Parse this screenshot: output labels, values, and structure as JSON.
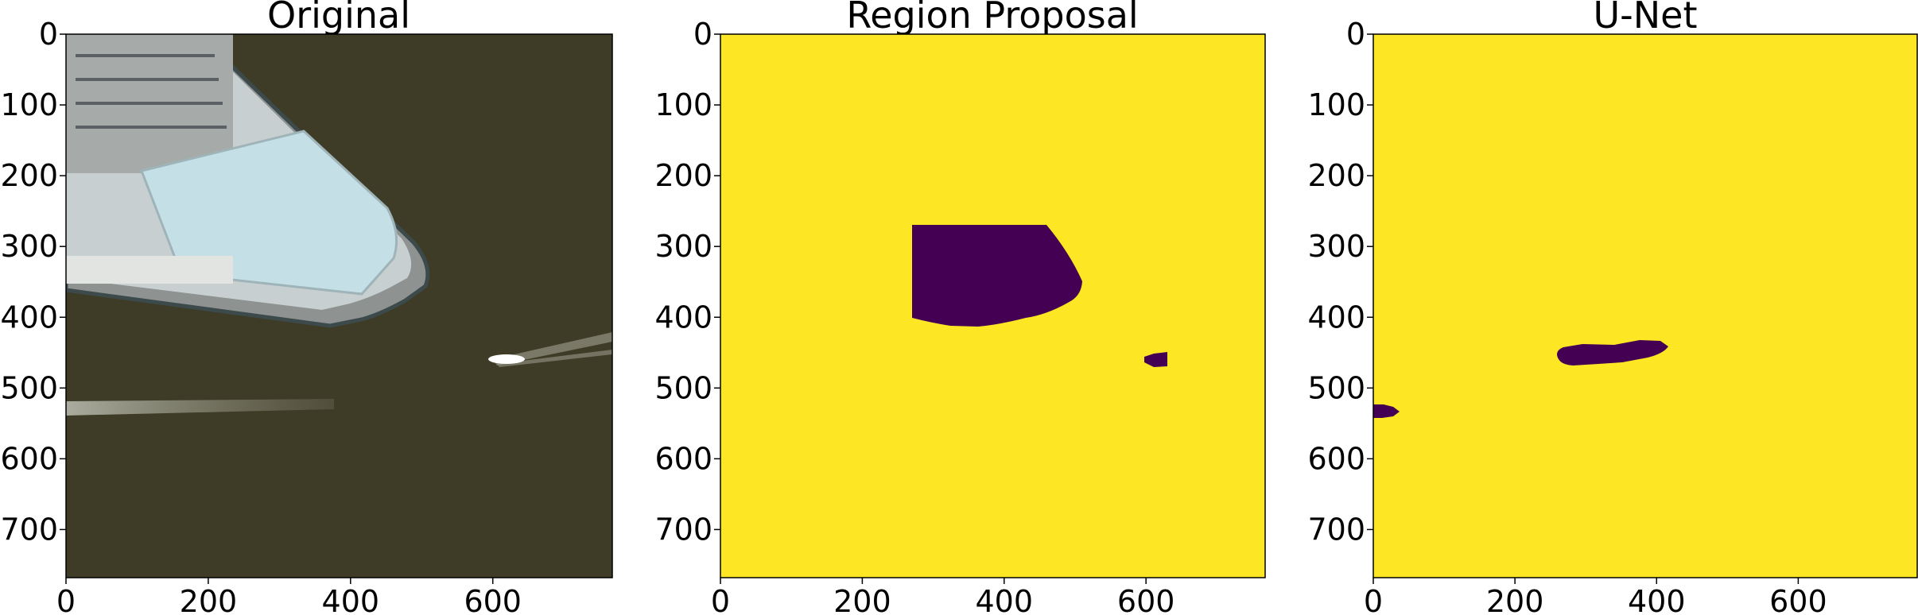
{
  "panels": [
    {
      "title": "Original",
      "content": "satellite image: harbor pier with parking lot and warehouse roof, open dark water, a boat with white wake trails",
      "x_ticks": [
        "0",
        "200",
        "400",
        "600"
      ],
      "y_ticks": [
        "0",
        "100",
        "200",
        "300",
        "400",
        "500",
        "600",
        "700"
      ]
    },
    {
      "title": "Region Proposal",
      "content": "binary mask: yellow background with dark purple detected regions",
      "x_ticks": [
        "0",
        "200",
        "400",
        "600"
      ],
      "y_ticks": [
        "0",
        "100",
        "200",
        "300",
        "400",
        "500",
        "600",
        "700"
      ]
    },
    {
      "title": "U-Net",
      "content": "binary mask: yellow background with dark purple detected regions",
      "x_ticks": [
        "0",
        "200",
        "400",
        "600"
      ],
      "y_ticks": [
        "0",
        "100",
        "200",
        "300",
        "400",
        "500",
        "600",
        "700"
      ]
    }
  ],
  "image_extent": {
    "x": [
      0,
      768
    ],
    "y": [
      768,
      0
    ]
  },
  "colors": {
    "mask_background": "#fde725",
    "mask_object": "#440154",
    "water": "#3e3b26",
    "pier": "#c7cfd0",
    "roof": "#c4e0e6"
  }
}
